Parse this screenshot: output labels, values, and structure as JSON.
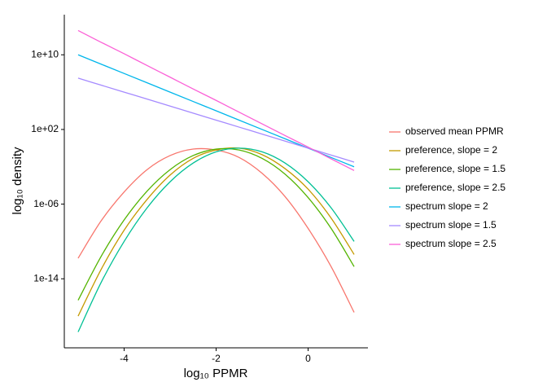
{
  "chart_data": {
    "type": "line",
    "xlabel": "log₁₀ PPMR",
    "ylabel": "log₁₀ density",
    "x": [
      -5,
      -4.5,
      -4,
      -3.5,
      -3,
      -2.5,
      -2,
      -1.5,
      -1,
      -0.5,
      0,
      0.5,
      1
    ],
    "xlim": [
      -5.3,
      1.3
    ],
    "xticks": [
      -4,
      -2,
      0
    ],
    "ylim": [
      4e-22,
      200000000000000.0
    ],
    "log_y": true,
    "yticks": [
      {
        "value": 1e-14,
        "label": "1e-14"
      },
      {
        "value": 1e-06,
        "label": "1e-06"
      },
      {
        "value": 100,
        "label": "1e+02"
      },
      {
        "value": 10000000000.0,
        "label": "1e+10"
      }
    ],
    "grid": false,
    "legend": "right",
    "series": [
      {
        "name": "observed mean PPMR",
        "color": "#F8766D",
        "values": [
          1.6e-12,
          1.6e-08,
          2e-05,
          0.005,
          0.16,
          0.79,
          0.63,
          0.1,
          0.002,
          6.3e-06,
          2.5e-09,
          2e-13,
          2.5e-18
        ]
      },
      {
        "name": "preference, slope = 2",
        "color": "#C49A00",
        "values": [
          1e-18,
          1e-13,
          1.6e-09,
          3.2e-06,
          0.0013,
          0.079,
          0.63,
          1,
          0.2,
          0.0063,
          4e-05,
          3.2e-08,
          4e-12
        ]
      },
      {
        "name": "preference, slope = 1.5",
        "color": "#53B400",
        "values": [
          5e-17,
          2.5e-12,
          2e-08,
          2.5e-05,
          0.005,
          0.16,
          0.79,
          0.63,
          0.079,
          0.0016,
          5e-06,
          2.5e-09,
          2e-13
        ]
      },
      {
        "name": "preference, slope = 2.5",
        "color": "#00C094",
        "values": [
          2e-20,
          4e-15,
          1e-10,
          4e-07,
          0.00025,
          0.025,
          0.4,
          1,
          0.4,
          0.025,
          0.00025,
          4e-07,
          1e-10
        ]
      },
      {
        "name": "spectrum slope = 2",
        "color": "#00B6EB",
        "values": [
          10000000000.0,
          1000000000.0,
          100000000.0,
          10000000.0,
          1000000.0,
          100000.0,
          10000.0,
          1000,
          100,
          10,
          1,
          0.1,
          0.01
        ]
      },
      {
        "name": "spectrum slope = 1.5",
        "color": "#A58AFF",
        "values": [
          32000000.0,
          5600000.0,
          1000000.0,
          180000.0,
          32000.0,
          5600.0,
          1000,
          178,
          32,
          5.6,
          1,
          0.18,
          0.032
        ]
      },
      {
        "name": "spectrum slope = 2.5",
        "color": "#FB61D7",
        "values": [
          4000000000000.0,
          220000000000.0,
          13000000000.0,
          710000000.0,
          40000000.0,
          2200000.0,
          130000.0,
          7100.0,
          400,
          22,
          1.3,
          0.071,
          0.004
        ]
      }
    ]
  }
}
